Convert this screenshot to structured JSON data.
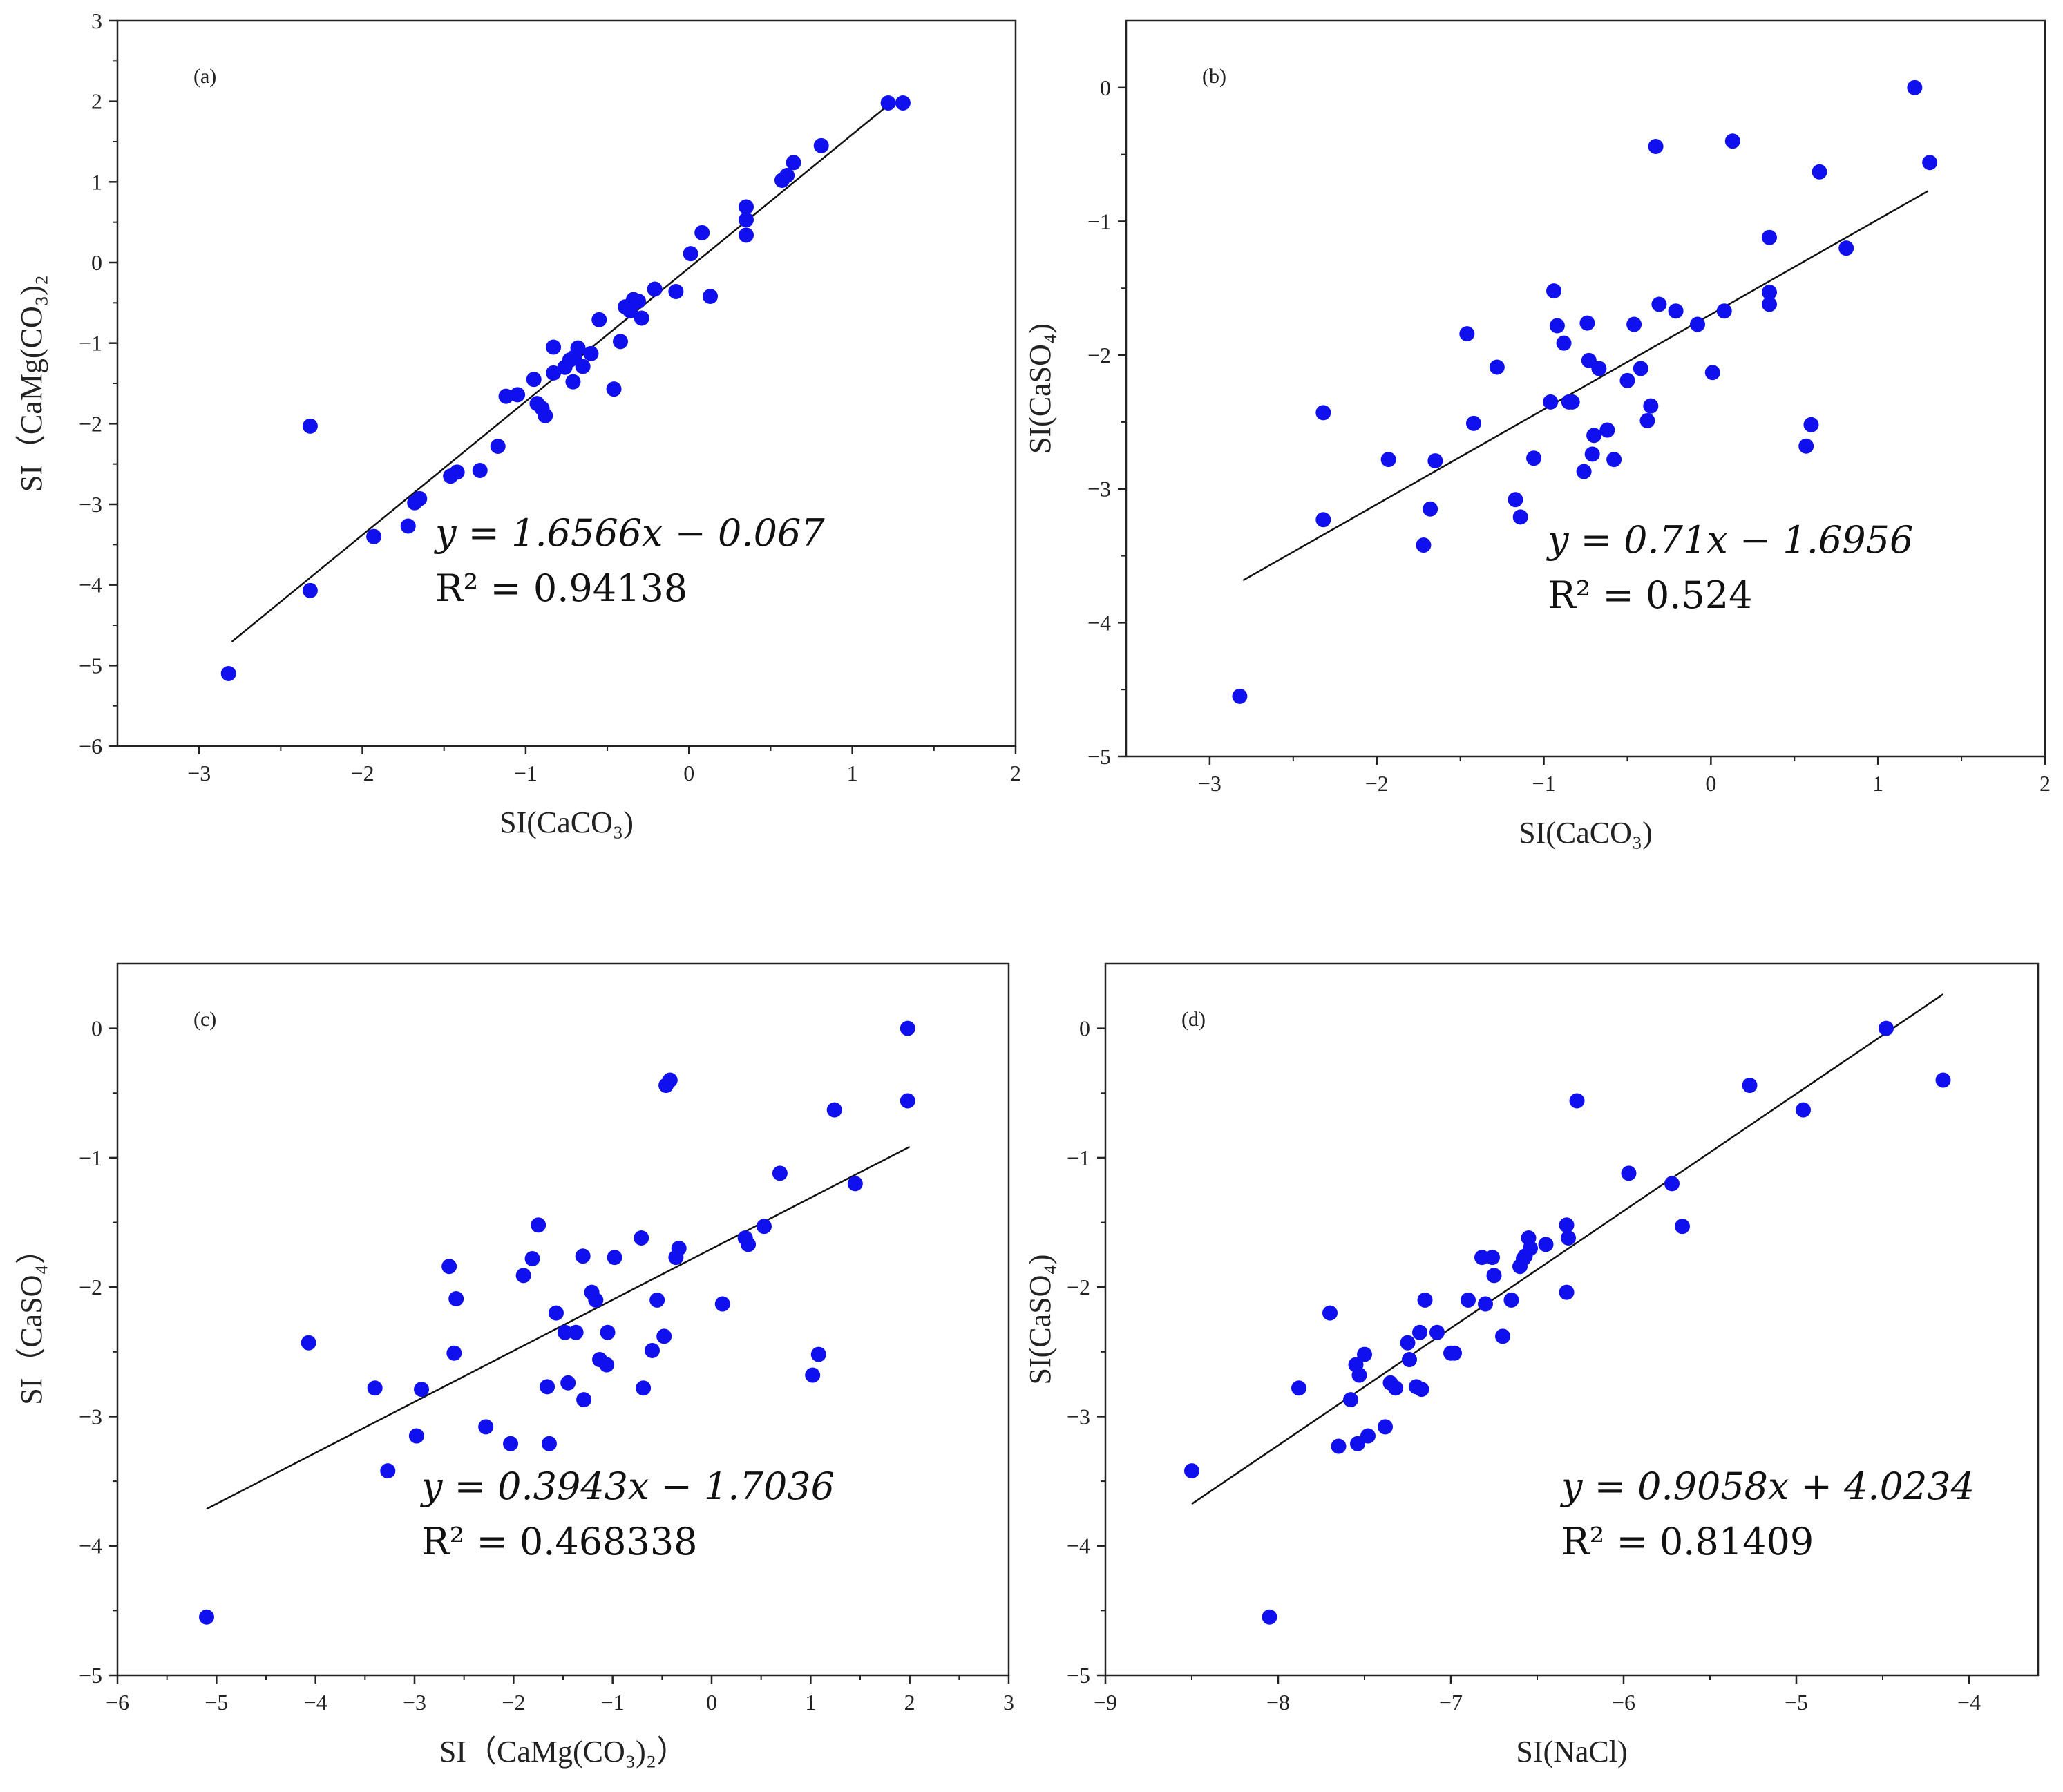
{
  "chart_data": [
    {
      "type": "scatter",
      "tag": "(a)",
      "xlabel": "SI(CaCO₃)",
      "ylabel": "SI（CaMg(CO₃)₂",
      "xlim": [
        -3.5,
        2
      ],
      "ylim": [
        -6,
        3
      ],
      "xticks": [
        -3,
        -2,
        -1,
        0,
        1,
        2
      ],
      "yticks": [
        -6,
        -5,
        -4,
        -3,
        -2,
        -1,
        0,
        1,
        2,
        3
      ],
      "fit": {
        "slope": 1.6566,
        "intercept": -0.067,
        "x_range": [
          -2.8,
          1.25
        ]
      },
      "equation": "y = 1.6566x − 0.067",
      "r2": "R² = 0.94138",
      "x": [
        -2.82,
        -2.32,
        -2.32,
        -1.93,
        -1.72,
        -1.68,
        -1.65,
        -1.46,
        -1.42,
        -1.28,
        -1.17,
        -1.12,
        -1.05,
        -0.95,
        -0.93,
        -0.9,
        -0.88,
        -0.83,
        -0.83,
        -0.76,
        -0.73,
        -0.71,
        -0.7,
        -0.68,
        -0.65,
        -0.6,
        -0.55,
        -0.46,
        -0.42,
        -0.39,
        -0.36,
        -0.34,
        -0.31,
        -0.29,
        -0.21,
        -0.08,
        0.01,
        0.08,
        0.13,
        0.35,
        0.35,
        0.35,
        0.57,
        0.6,
        0.64,
        0.81,
        1.22,
        1.31
      ],
      "y": [
        -5.1,
        -4.07,
        -2.03,
        -3.4,
        -3.27,
        -2.98,
        -2.93,
        -2.65,
        -2.6,
        -2.58,
        -2.28,
        -1.66,
        -1.64,
        -1.45,
        -1.75,
        -1.81,
        -1.9,
        -1.37,
        -1.05,
        -1.3,
        -1.21,
        -1.48,
        -1.17,
        -1.06,
        -1.29,
        -1.13,
        -0.71,
        -1.57,
        -0.98,
        -0.55,
        -0.6,
        -0.46,
        -0.48,
        -0.69,
        -0.33,
        -0.36,
        0.11,
        0.37,
        -0.42,
        0.53,
        0.34,
        0.69,
        1.02,
        1.08,
        1.24,
        1.45,
        1.98,
        1.98
      ]
    },
    {
      "type": "scatter",
      "tag": "(b)",
      "xlabel": "SI(CaCO₃)",
      "ylabel": "SI(CaSO₄)",
      "xlim": [
        -3.5,
        2
      ],
      "ylim": [
        -5,
        0.5
      ],
      "xticks": [
        -3,
        -2,
        -1,
        0,
        1,
        2
      ],
      "yticks": [
        -5,
        -4,
        -3,
        -2,
        -1,
        0
      ],
      "fit": {
        "slope": 0.71,
        "intercept": -1.6956,
        "x_range": [
          -2.8,
          1.3
        ]
      },
      "equation": "y = 0.71x − 1.6956",
      "r2": "R² = 0.524",
      "x": [
        -2.82,
        -2.32,
        -2.32,
        -1.93,
        -1.72,
        -1.68,
        -1.65,
        -1.46,
        -1.42,
        -1.28,
        -1.17,
        -1.14,
        -1.06,
        -0.96,
        -0.94,
        -0.92,
        -0.88,
        -0.85,
        -0.83,
        -0.76,
        -0.74,
        -0.73,
        -0.71,
        -0.7,
        -0.67,
        -0.62,
        -0.58,
        -0.5,
        -0.46,
        -0.42,
        -0.38,
        -0.36,
        -0.33,
        -0.31,
        -0.21,
        -0.08,
        0.01,
        0.08,
        0.13,
        0.35,
        0.35,
        0.35,
        0.57,
        0.6,
        0.65,
        0.81,
        1.22,
        1.31
      ],
      "y": [
        -4.55,
        -3.23,
        -2.43,
        -2.78,
        -3.42,
        -3.15,
        -2.79,
        -1.84,
        -2.51,
        -2.09,
        -3.08,
        -3.21,
        -2.77,
        -2.35,
        -1.52,
        -1.78,
        -1.91,
        -2.35,
        -2.35,
        -2.87,
        -1.76,
        -2.04,
        -2.74,
        -2.6,
        -2.1,
        -2.56,
        -2.78,
        -2.19,
        -1.77,
        -2.1,
        -2.49,
        -2.38,
        -0.44,
        -1.62,
        -1.67,
        -1.77,
        -2.13,
        -1.67,
        -0.4,
        -1.12,
        -1.53,
        -1.62,
        -2.68,
        -2.52,
        -0.63,
        -1.2,
        0,
        -0.56
      ]
    },
    {
      "type": "scatter",
      "tag": "(c)",
      "xlabel": "SI（CaMg(CO₃)₂）",
      "ylabel": "SI（CaSO₄）",
      "xlim": [
        -6,
        3
      ],
      "ylim": [
        -5,
        0.5
      ],
      "xticks": [
        -6,
        -5,
        -4,
        -3,
        -2,
        -1,
        0,
        1,
        2,
        3
      ],
      "yticks": [
        -5,
        -4,
        -3,
        -2,
        -1,
        0
      ],
      "fit": {
        "slope": 0.3943,
        "intercept": -1.7036,
        "x_range": [
          -5.1,
          2.0
        ]
      },
      "equation": "y = 0.3943x − 1.7036",
      "r2": "R² = 0.468338",
      "x": [
        -5.1,
        -4.07,
        -3.4,
        -3.27,
        -2.98,
        -2.93,
        -2.65,
        -2.6,
        -2.58,
        -2.28,
        -2.03,
        -1.9,
        -1.81,
        -1.75,
        -1.66,
        -1.64,
        -1.57,
        -1.48,
        -1.45,
        -1.37,
        -1.3,
        -1.29,
        -1.21,
        -1.17,
        -1.13,
        -1.06,
        -1.05,
        -0.98,
        -0.71,
        -0.69,
        -0.6,
        -0.55,
        -0.48,
        -0.46,
        -0.42,
        -0.36,
        -0.33,
        0.11,
        0.34,
        0.37,
        0.53,
        0.69,
        1.02,
        1.08,
        1.24,
        1.45,
        1.98,
        1.98
      ],
      "y": [
        -4.55,
        -2.43,
        -2.78,
        -3.42,
        -3.15,
        -2.79,
        -1.84,
        -2.51,
        -2.09,
        -3.08,
        -3.21,
        -1.91,
        -1.78,
        -1.52,
        -2.77,
        -3.21,
        -2.2,
        -2.35,
        -2.74,
        -2.35,
        -1.76,
        -2.87,
        -2.04,
        -2.1,
        -2.56,
        -2.6,
        -2.35,
        -1.77,
        -1.62,
        -2.78,
        -2.49,
        -2.1,
        -2.38,
        -0.44,
        -0.4,
        -1.77,
        -1.7,
        -2.13,
        -1.62,
        -1.67,
        -1.53,
        -1.12,
        -2.68,
        -2.52,
        -0.63,
        -1.2,
        0,
        -0.56
      ]
    },
    {
      "type": "scatter",
      "tag": "(d)",
      "xlabel": "SI(NaCl)",
      "ylabel": "SI(CaSO₄)",
      "xlim": [
        -9,
        -3.6
      ],
      "ylim": [
        -5,
        0.5
      ],
      "xticks": [
        -9,
        -8,
        -7,
        -6,
        -5,
        -4
      ],
      "yticks": [
        -5,
        -4,
        -3,
        -2,
        -1,
        0
      ],
      "fit": {
        "slope": 0.9058,
        "intercept": 4.0234,
        "x_range": [
          -8.5,
          -4.15
        ]
      },
      "equation": "y = 0.9058x + 4.0234",
      "r2": "R² = 0.81409",
      "x": [
        -8.5,
        -8.05,
        -7.88,
        -7.7,
        -7.65,
        -7.58,
        -7.55,
        -7.54,
        -7.53,
        -7.5,
        -7.48,
        -7.38,
        -7.35,
        -7.32,
        -7.25,
        -7.24,
        -7.2,
        -7.18,
        -7.17,
        -7.15,
        -7.08,
        -7.0,
        -6.98,
        -6.9,
        -6.82,
        -6.8,
        -6.76,
        -6.75,
        -6.7,
        -6.65,
        -6.6,
        -6.58,
        -6.57,
        -6.55,
        -6.54,
        -6.45,
        -6.33,
        -6.33,
        -6.32,
        -6.27,
        -5.97,
        -5.72,
        -5.66,
        -5.27,
        -4.96,
        -4.48,
        -4.15
      ],
      "y": [
        -3.42,
        -4.55,
        -2.78,
        -2.2,
        -3.23,
        -2.87,
        -2.6,
        -3.21,
        -2.68,
        -2.52,
        -3.15,
        -3.08,
        -2.74,
        -2.78,
        -2.43,
        -2.56,
        -2.77,
        -2.35,
        -2.79,
        -2.1,
        -2.35,
        -2.51,
        -2.51,
        -2.1,
        -1.77,
        -2.13,
        -1.77,
        -1.91,
        -2.38,
        -2.1,
        -1.84,
        -1.78,
        -1.76,
        -1.62,
        -1.7,
        -1.67,
        -2.04,
        -1.52,
        -1.62,
        -0.56,
        -1.12,
        -1.2,
        -1.53,
        -0.44,
        -0.63,
        0,
        -0.4
      ]
    }
  ]
}
